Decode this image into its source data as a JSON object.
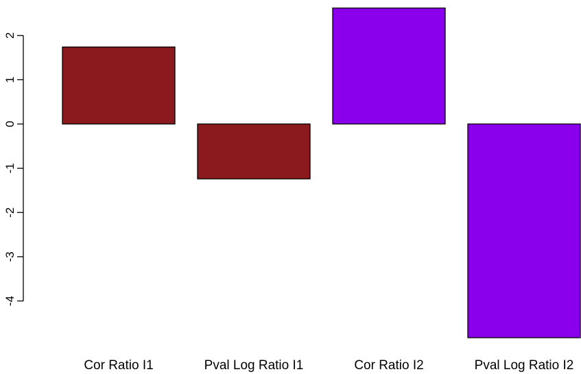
{
  "chart_data": {
    "type": "bar",
    "categories": [
      "Cor Ratio I1",
      "Pval Log Ratio I1",
      "Cor Ratio I2",
      "Pval Log Ratio I2"
    ],
    "values": [
      1.74,
      -1.24,
      2.62,
      -4.83
    ],
    "colors": [
      "#8b1a1f",
      "#8b1a1f",
      "#8a00ec",
      "#8a00ec"
    ],
    "yticks": [
      2,
      1,
      0,
      -1,
      -2,
      -3,
      -4
    ],
    "ylim": [
      -4.95,
      2.65
    ],
    "title": "",
    "xlabel": "",
    "ylabel": "",
    "grid": false,
    "legend": "none"
  }
}
